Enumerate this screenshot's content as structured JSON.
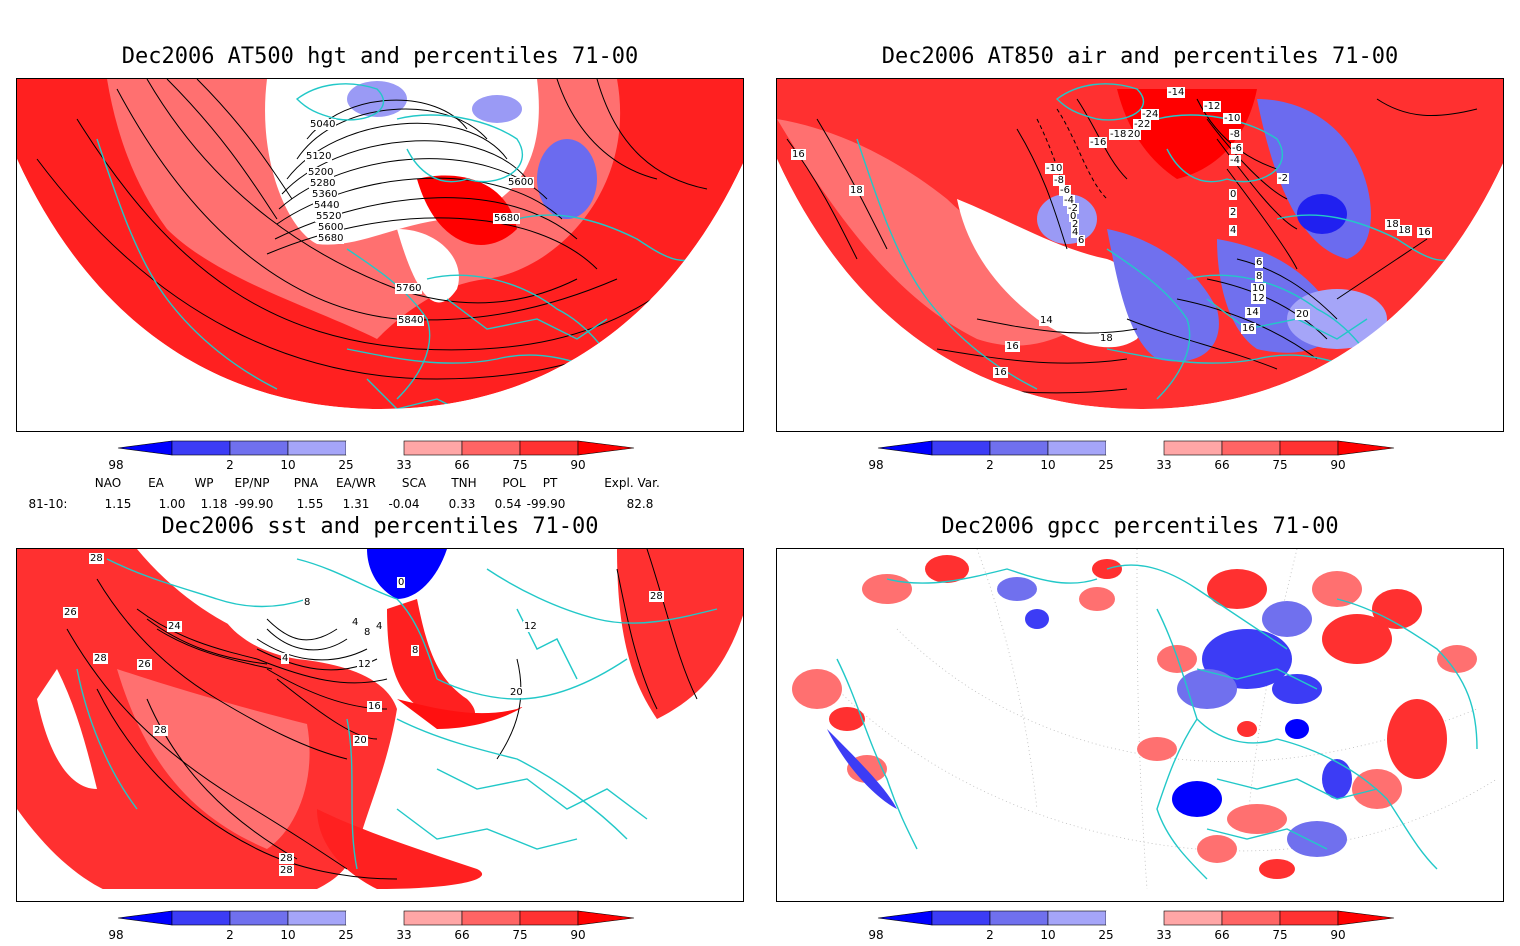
{
  "panels": {
    "tl": {
      "title": "Dec2006 AT500 hgt and percentiles 71-00",
      "contour_labels": [
        "5040",
        "5120",
        "5200",
        "5280",
        "5360",
        "5440",
        "5520",
        "5600",
        "5680",
        "5600",
        "5680",
        "5760",
        "5840"
      ]
    },
    "tr": {
      "title": "Dec2006 AT850 air and percentiles 71-00",
      "contour_labels": [
        "-14",
        "-12",
        "-10",
        "-8",
        "-6",
        "-4",
        "-2",
        "0",
        "2",
        "4",
        "6",
        "8",
        "10",
        "12",
        "14",
        "16",
        "18",
        "20",
        "16",
        "18",
        "-24",
        "-22",
        "-20",
        "-18",
        "-16",
        "-10",
        "-8",
        "-6",
        "-4",
        "-2",
        "0",
        "2",
        "4",
        "6",
        "14",
        "16",
        "16",
        "18",
        "18",
        "16"
      ]
    },
    "bl": {
      "title": "Dec2006 sst and percentiles 71-00",
      "contour_labels": [
        "28",
        "26",
        "24",
        "28",
        "26",
        "28",
        "0",
        "8",
        "4",
        "4",
        "8",
        "4",
        "12",
        "16",
        "20",
        "28",
        "28",
        "8",
        "12",
        "20",
        "28"
      ]
    },
    "br": {
      "title": "Dec2006 gpcc percentiles 71-00",
      "contour_labels": []
    }
  },
  "colorbar": {
    "labels": [
      "2",
      "10",
      "25",
      "33",
      "66",
      "75",
      "90",
      "98"
    ],
    "colors": [
      "#0000ff",
      "#3c3cf5",
      "#7070ee",
      "#a5a5f8",
      "#ffffff",
      "#ffa6a6",
      "#ff6464",
      "#ff3232",
      "#ff0000"
    ]
  },
  "indices": {
    "headers": [
      "NAO",
      "EA",
      "WP",
      "EP/NP",
      "PNA",
      "EA/WR",
      "SCA",
      "TNH",
      "POL",
      "PT",
      "Expl. Var."
    ],
    "row_label": "81-10:",
    "values": [
      "1.15",
      "1.00",
      "1.18",
      "-99.90",
      "1.55",
      "1.31",
      "-0.04",
      "0.33",
      "0.54",
      "-99.90",
      "82.8"
    ]
  }
}
